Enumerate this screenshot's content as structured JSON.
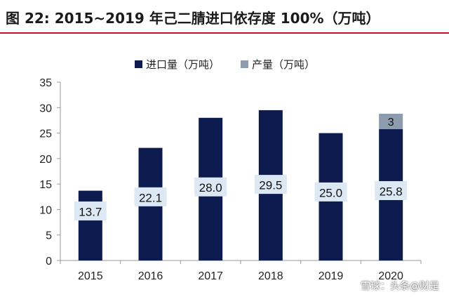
{
  "header": {
    "title": "图 22:   2015~2019 年己二腈进口依存度 100%（万吨）"
  },
  "watermark": "雪球：头条@财是",
  "colors": {
    "import": "#0d1b4f",
    "production": "#8c9cae",
    "accent": "#c8102e",
    "label_bg": "#dce8f4"
  },
  "chart_data": {
    "type": "bar",
    "stacked": true,
    "categories": [
      "2015",
      "2016",
      "2017",
      "2018",
      "2019",
      "2020"
    ],
    "series": [
      {
        "name": "进口量（万吨）",
        "values": [
          13.7,
          22.1,
          28.0,
          29.5,
          25.0,
          25.8
        ],
        "labels": [
          "13.7",
          "22.1",
          "28.0",
          "29.5",
          "25.0",
          "25.8"
        ]
      },
      {
        "name": "产量（万吨）",
        "values": [
          0,
          0,
          0,
          0,
          0,
          3
        ],
        "labels": [
          "",
          "",
          "",
          "",
          "",
          "3"
        ]
      }
    ],
    "ylim": [
      0,
      35
    ],
    "yticks": [
      0,
      5,
      10,
      15,
      20,
      25,
      30,
      35
    ],
    "grid": false,
    "legend_position": "top"
  }
}
